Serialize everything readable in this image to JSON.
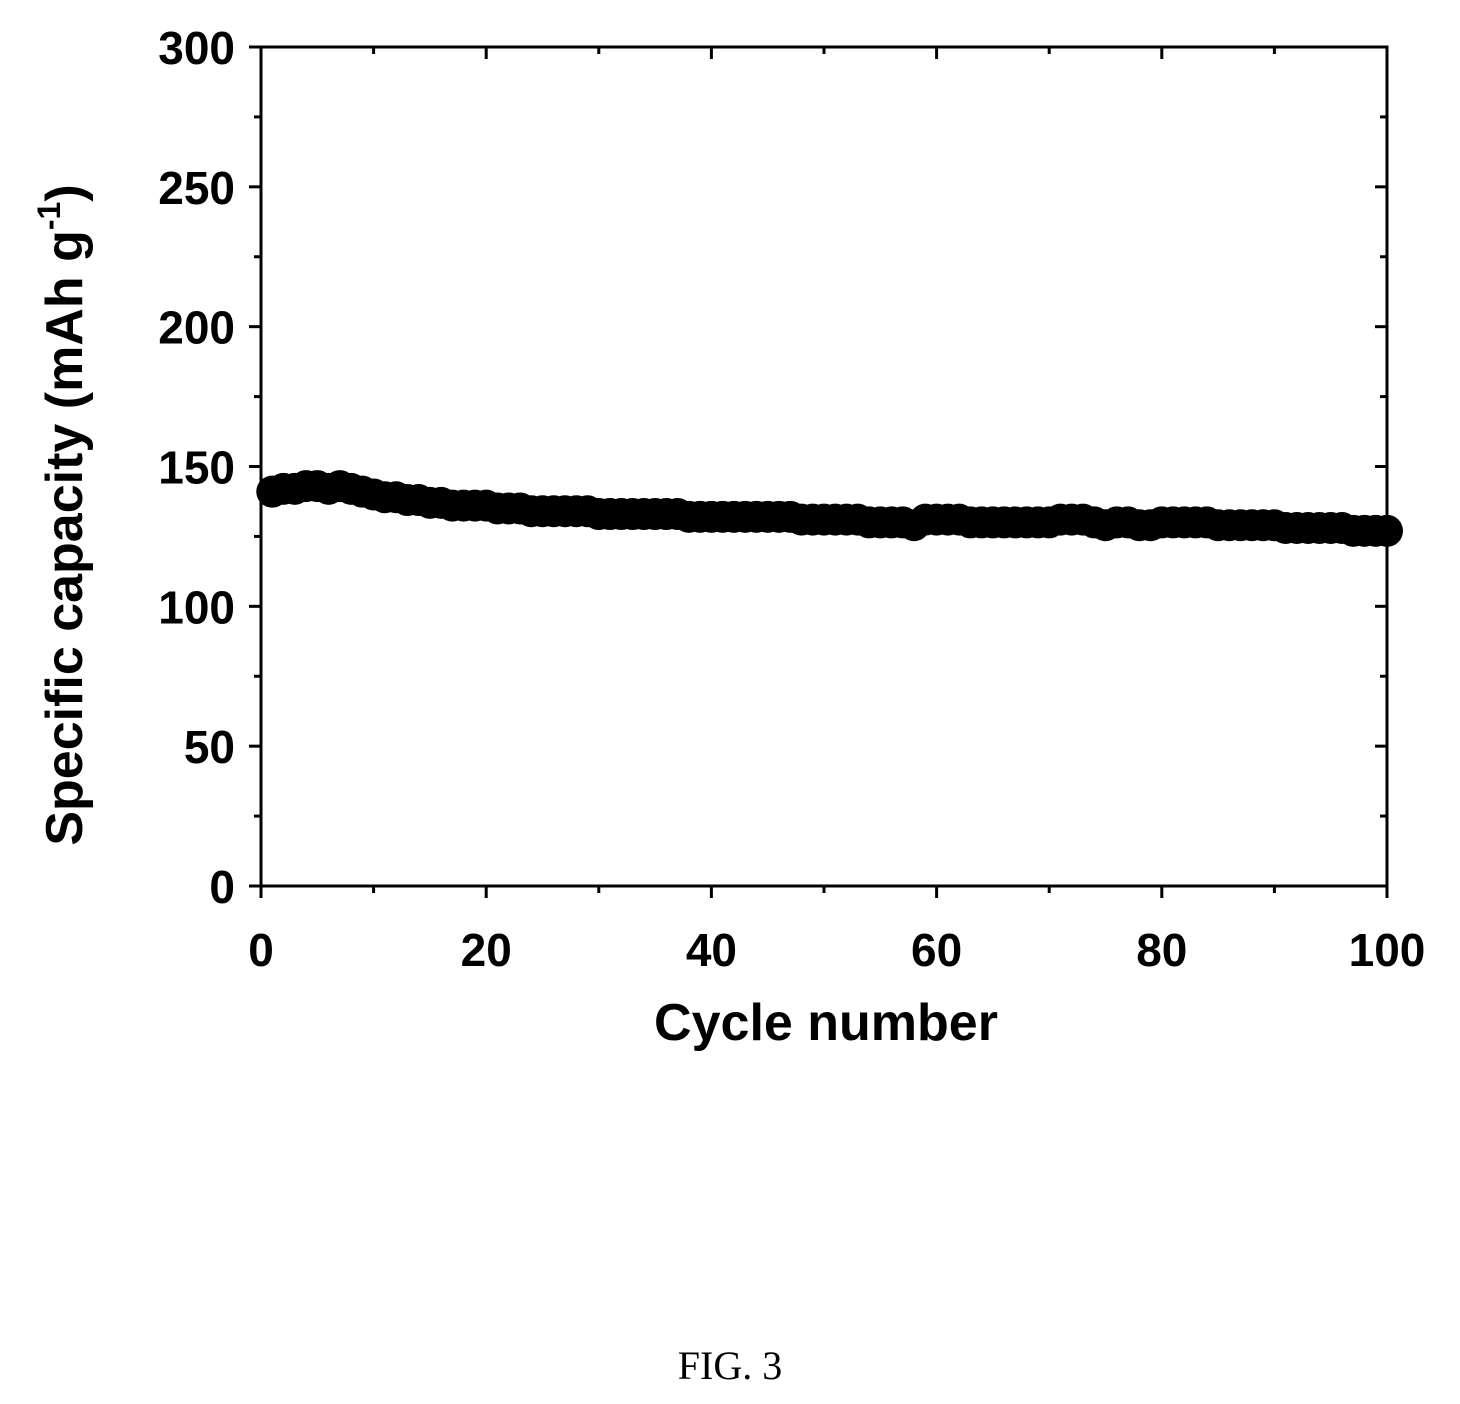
{
  "figure_caption": "FIG. 3",
  "chart_data": {
    "type": "scatter",
    "title": "",
    "xlabel": "Cycle number",
    "ylabel": "Specific capacity (mAh g",
    "ylabel_superscript": "-1",
    "ylabel_close": ")",
    "xlim": [
      0,
      100
    ],
    "ylim": [
      0,
      300
    ],
    "x_ticks": [
      0,
      20,
      40,
      60,
      80,
      100
    ],
    "x_tick_labels": [
      "0",
      "20",
      "40",
      "60",
      "80",
      "100"
    ],
    "y_ticks": [
      0,
      50,
      100,
      150,
      200,
      250,
      300
    ],
    "y_tick_labels": [
      "0",
      "50",
      "100",
      "150",
      "200",
      "250",
      "300"
    ],
    "x_minor_step": 10,
    "y_minor_step": 25,
    "grid": false,
    "legend": "none",
    "marker_color": "#000000",
    "series": [
      {
        "x": [
          1,
          2,
          3,
          4,
          5,
          6,
          7,
          8,
          9,
          10,
          11,
          12,
          13,
          14,
          15,
          16,
          17,
          18,
          19,
          20,
          21,
          22,
          23,
          24,
          25,
          26,
          27,
          28,
          29,
          30,
          31,
          32,
          33,
          34,
          35,
          36,
          37,
          38,
          39,
          40,
          41,
          42,
          43,
          44,
          45,
          46,
          47,
          48,
          49,
          50,
          51,
          52,
          53,
          54,
          55,
          56,
          57,
          58,
          59,
          60,
          61,
          62,
          63,
          64,
          65,
          66,
          67,
          68,
          69,
          70,
          71,
          72,
          73,
          74,
          75,
          76,
          77,
          78,
          79,
          80,
          81,
          82,
          83,
          84,
          85,
          86,
          87,
          88,
          89,
          90,
          91,
          92,
          93,
          94,
          95,
          96,
          97,
          98,
          99,
          100
        ],
        "y": [
          141,
          142,
          142,
          143,
          143,
          142,
          143,
          142,
          141,
          140,
          139,
          139,
          138,
          138,
          137,
          137,
          136,
          136,
          136,
          136,
          135,
          135,
          135,
          134,
          134,
          134,
          134,
          134,
          134,
          133,
          133,
          133,
          133,
          133,
          133,
          133,
          133,
          132,
          132,
          132,
          132,
          132,
          132,
          132,
          132,
          132,
          132,
          131,
          131,
          131,
          131,
          131,
          131,
          130,
          130,
          130,
          130,
          129,
          131,
          131,
          131,
          131,
          130,
          130,
          130,
          130,
          130,
          130,
          130,
          130,
          131,
          131,
          131,
          130,
          129,
          130,
          130,
          129,
          129,
          130,
          130,
          130,
          130,
          130,
          129,
          129,
          129,
          129,
          129,
          129,
          128,
          128,
          128,
          128,
          128,
          128,
          127,
          127,
          127,
          127
        ]
      }
    ]
  }
}
